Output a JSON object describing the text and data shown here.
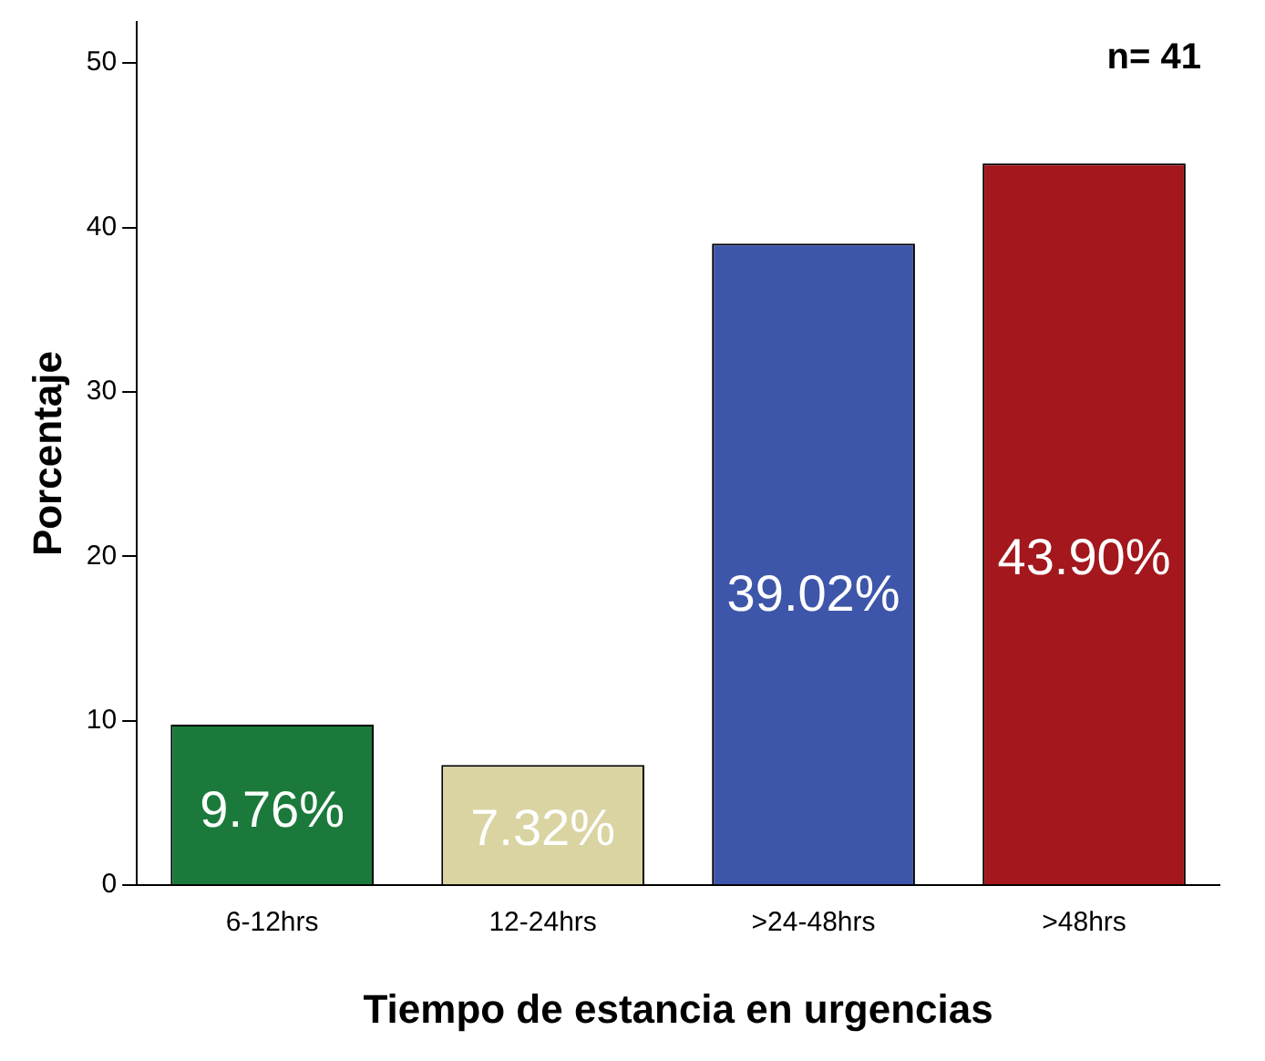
{
  "chart_data": {
    "type": "bar",
    "xlabel": "Tiempo de estancia en urgencias",
    "ylabel": "Porcentaje",
    "categories": [
      "6-12hrs",
      "12-24hrs",
      ">24-48hrs",
      ">48hrs"
    ],
    "values": [
      9.76,
      7.32,
      39.02,
      43.9
    ],
    "colors": [
      "#1b7a3b",
      "#d9d4a2",
      "#3e56a9",
      "#a3171d"
    ],
    "value_labels": [
      "9.76%",
      "7.32%",
      "39.02%",
      "43.90%"
    ],
    "annotations": [
      "n= 41"
    ],
    "ylim": [
      0,
      52.5
    ],
    "yticks": [
      0,
      10,
      20,
      30,
      40,
      50
    ],
    "grid": false,
    "legend": false
  }
}
